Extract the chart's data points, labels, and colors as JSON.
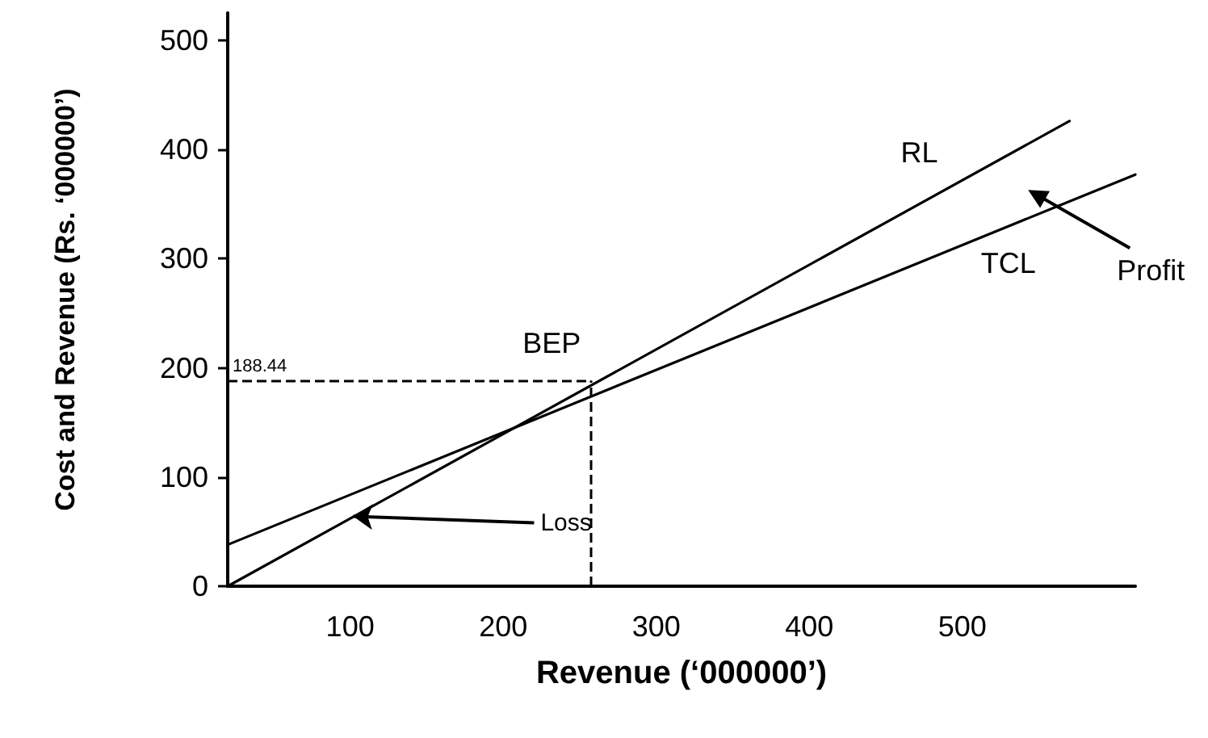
{
  "chart_data": {
    "type": "line",
    "xlabel": "Revenue (‘000000’)",
    "ylabel": "Cost and Revenue (Rs. ‘000000’)",
    "series": [
      {
        "name": "RL",
        "color": "#000000",
        "x": [
          20,
          570
        ],
        "values": [
          0,
          426
        ]
      },
      {
        "name": "TCL",
        "color": "#000000",
        "x": [
          20,
          613
        ],
        "values": [
          38,
          377
        ]
      }
    ],
    "xlim": [
      20,
      613
    ],
    "xticks": [
      100,
      200,
      300,
      400,
      500
    ],
    "ylim": [
      0,
      525
    ],
    "yticks": [
      0,
      100,
      200,
      300,
      400,
      500
    ],
    "ref_lines": [
      {
        "axis": "y",
        "value": 188.44,
        "label": "188.44",
        "line_style": "dashed",
        "color": "#000000"
      },
      {
        "axis": "x",
        "value": 257,
        "line_style": "dashed",
        "color": "#000000"
      }
    ],
    "annotations": [
      "BEP",
      {
        "text": "Loss",
        "x": 102,
        "y": 64
      },
      "Profit"
    ],
    "grid": false,
    "legend": false,
    "marker": "none",
    "line_style": "solid"
  }
}
